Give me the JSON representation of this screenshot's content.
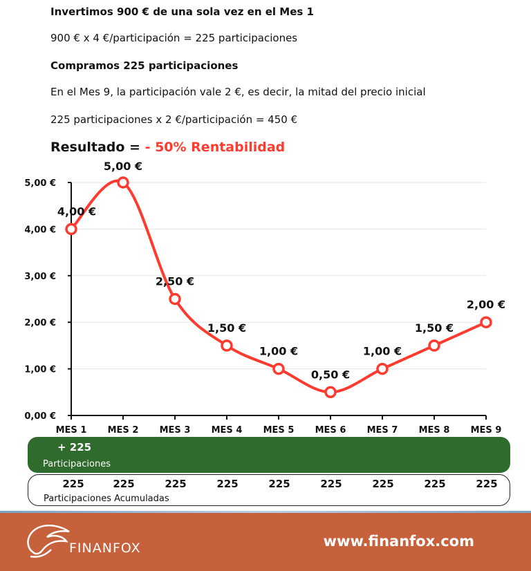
{
  "text": {
    "line1": "Invertimos 900 € de una sola vez en el Mes 1",
    "line2": "900 € x 4 €/participación = 225 participaciones",
    "line3": "Compramos 225 participaciones",
    "line4": "En el Mes 9, la participación vale 2 €, es decir, la mitad del precio inicial",
    "line5": "225 participaciones x 2 €/participación = 450 €",
    "result_prefix": "Resultado = ",
    "result_value": "- 50% Rentabilidad"
  },
  "chart_data": {
    "type": "line",
    "categories": [
      "MES 1",
      "MES 2",
      "MES 3",
      "MES 4",
      "MES 5",
      "MES 6",
      "MES 7",
      "MES 8",
      "MES 9"
    ],
    "values": [
      4.0,
      5.0,
      2.5,
      1.5,
      1.0,
      0.5,
      1.0,
      1.5,
      2.0
    ],
    "data_labels": [
      "4,00 €",
      "5,00 €",
      "2,50 €",
      "1,50 €",
      "1,00 €",
      "0,50 €",
      "1,00 €",
      "1,50 €",
      "2,00 €"
    ],
    "y_ticks": [
      0,
      1,
      2,
      3,
      4,
      5
    ],
    "y_tick_labels": [
      "0,00 €",
      "1,00 €",
      "2,00 €",
      "3,00 €",
      "4,00 €",
      "5,00 €"
    ],
    "ylim": [
      0,
      5
    ],
    "grid": true,
    "line_color": "#ff3b30"
  },
  "participations": {
    "title": "+ 225",
    "subtitle": "Participaciones",
    "color": "#2e6b2c"
  },
  "accumulated": {
    "values": [
      "225",
      "225",
      "225",
      "225",
      "225",
      "225",
      "225",
      "225",
      "225"
    ],
    "subtitle": "Participaciones Acumuladas"
  },
  "footer": {
    "brand": "FINANFOX",
    "url": "www.finanfox.com",
    "color": "#c7613c"
  }
}
